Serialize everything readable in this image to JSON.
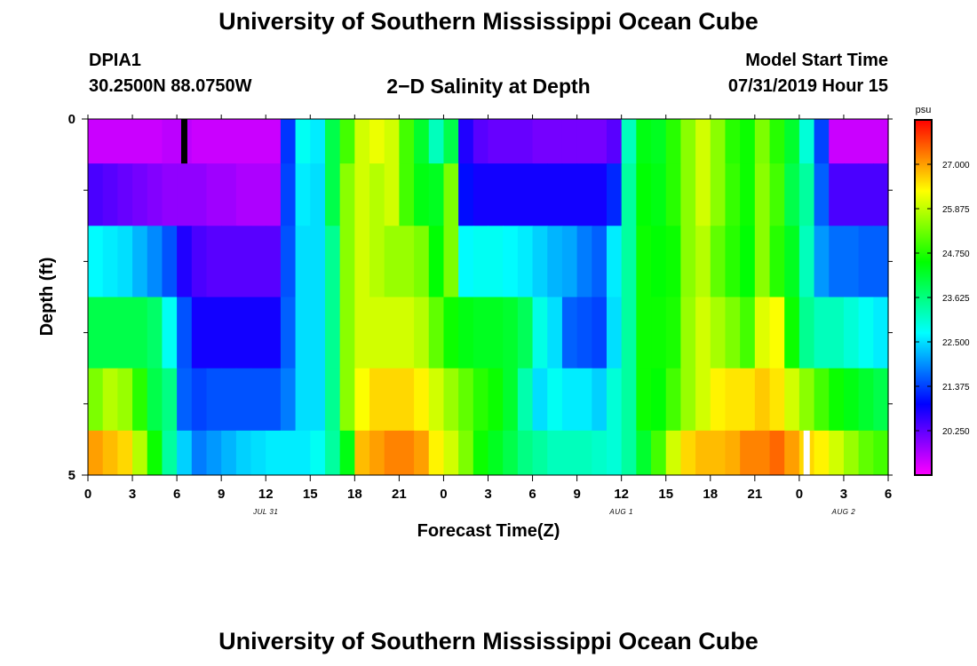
{
  "header": {
    "title_top": "University of Southern Mississippi Ocean Cube",
    "title_bottom": "University of Southern Mississippi Ocean Cube",
    "station_id": "DPIA1",
    "coordinates": "30.2500N 88.0750W",
    "subtitle": "2−D Salinity at Depth",
    "model_start_label": "Model Start Time",
    "model_start_value": "07/31/2019 Hour 15"
  },
  "chart_data": {
    "type": "heatmap",
    "title": "2−D Salinity at Depth",
    "xlabel": "Forecast Time(Z)",
    "ylabel": "Depth (ft)",
    "x_tick_labels": [
      "0",
      "3",
      "6",
      "9",
      "12",
      "15",
      "18",
      "21",
      "0",
      "3",
      "6",
      "9",
      "12",
      "15",
      "18",
      "21",
      "0",
      "3",
      "6"
    ],
    "x_range_hours": [
      0,
      54
    ],
    "date_labels": [
      {
        "text": "JUL 31",
        "hour": 12
      },
      {
        "text": "AUG 1",
        "hour": 36
      },
      {
        "text": "AUG 2",
        "hour": 51
      }
    ],
    "y_tick_labels": [
      "0",
      "5"
    ],
    "y_range_ft": [
      0,
      5
    ],
    "depth_rows_ft": [
      0.25,
      1,
      2,
      3,
      4,
      4.75
    ],
    "colorbar": {
      "unit": "psu",
      "min": 19.125,
      "max": 28.125,
      "tick_labels": [
        "27.000",
        "25.875",
        "24.750",
        "23.625",
        "22.500",
        "21.375",
        "20.250"
      ],
      "tick_values": [
        27.0,
        25.875,
        24.75,
        23.625,
        22.5,
        21.375,
        20.25
      ]
    },
    "salinity_psu": [
      [
        19.5,
        19.5,
        19.5,
        19.5,
        19.5,
        19.6,
        19.6,
        19.5,
        19.5,
        19.5,
        19.5,
        19.5,
        19.5,
        21.3,
        22.8,
        22.6,
        24.0,
        25.0,
        26.0,
        26.2,
        26.0,
        25.0,
        24.2,
        23.2,
        24.0,
        20.7,
        20.3,
        20.2,
        20.2,
        20.2,
        20.1,
        20.1,
        20.1,
        20.1,
        20.1,
        20.3,
        23.2,
        24.4,
        24.3,
        24.8,
        25.5,
        26.0,
        25.5,
        24.8,
        24.6,
        25.4,
        24.8,
        24.2,
        23.0,
        21.4,
        19.5,
        19.5,
        19.5,
        19.5
      ],
      [
        20.4,
        20.3,
        20.2,
        20.1,
        20.0,
        19.9,
        19.9,
        19.9,
        19.8,
        19.8,
        19.7,
        19.7,
        19.7,
        21.4,
        22.6,
        22.5,
        24.0,
        25.5,
        26.0,
        25.8,
        26.0,
        25.0,
        24.4,
        24.3,
        25.4,
        21.0,
        20.8,
        20.8,
        20.8,
        20.8,
        20.8,
        20.8,
        20.8,
        20.8,
        20.8,
        21.2,
        23.4,
        24.5,
        24.4,
        24.8,
        25.5,
        26.0,
        25.5,
        24.9,
        24.6,
        25.5,
        25.0,
        24.0,
        23.4,
        21.6,
        20.4,
        20.4,
        20.4,
        20.4
      ],
      [
        22.7,
        22.6,
        22.5,
        22.2,
        21.9,
        21.5,
        20.7,
        20.4,
        20.3,
        20.3,
        20.3,
        20.3,
        20.3,
        21.5,
        22.5,
        22.5,
        23.5,
        25.5,
        26.0,
        25.8,
        25.6,
        25.6,
        25.4,
        24.5,
        25.4,
        22.7,
        22.8,
        22.8,
        22.7,
        22.6,
        22.4,
        22.2,
        22.1,
        21.8,
        21.6,
        22.6,
        23.4,
        24.6,
        24.5,
        24.6,
        25.5,
        25.8,
        25.2,
        24.8,
        24.5,
        25.5,
        24.8,
        24.3,
        23.2,
        22.0,
        21.7,
        21.7,
        21.6,
        21.6
      ],
      [
        24.0,
        24.0,
        24.0,
        24.0,
        23.8,
        22.8,
        21.5,
        20.8,
        20.8,
        20.8,
        20.8,
        20.8,
        20.8,
        21.6,
        22.5,
        22.5,
        23.5,
        25.5,
        26.0,
        26.0,
        26.0,
        26.0,
        25.8,
        25.2,
        24.6,
        24.4,
        24.3,
        24.3,
        24.2,
        23.9,
        22.9,
        22.5,
        21.6,
        21.5,
        21.4,
        22.5,
        23.4,
        24.6,
        24.6,
        24.7,
        25.6,
        26.0,
        25.7,
        25.4,
        25.0,
        26.1,
        26.3,
        24.6,
        23.5,
        23.2,
        23.2,
        23.0,
        22.8,
        22.6
      ],
      [
        25.4,
        25.8,
        25.6,
        24.8,
        24.0,
        23.6,
        21.6,
        21.4,
        21.5,
        21.5,
        21.5,
        21.5,
        21.5,
        21.8,
        22.5,
        22.5,
        23.5,
        25.5,
        26.3,
        26.6,
        26.6,
        26.6,
        26.4,
        26.0,
        25.6,
        25.2,
        24.8,
        24.6,
        24.2,
        23.3,
        22.5,
        22.8,
        22.6,
        22.6,
        22.4,
        23.0,
        23.4,
        24.6,
        24.5,
        25.0,
        25.6,
        26.0,
        26.4,
        26.5,
        26.5,
        26.7,
        26.5,
        26.0,
        25.5,
        25.0,
        24.6,
        24.4,
        24.2,
        24.0
      ],
      [
        27.0,
        26.8,
        26.6,
        25.8,
        24.6,
        23.4,
        22.4,
        21.8,
        22.0,
        22.2,
        22.4,
        22.5,
        22.6,
        22.6,
        22.6,
        22.8,
        23.4,
        24.4,
        26.8,
        27.0,
        27.2,
        27.2,
        27.0,
        26.4,
        26.0,
        25.4,
        24.6,
        24.3,
        24.0,
        23.6,
        23.4,
        23.2,
        23.2,
        23.2,
        23.1,
        23.0,
        23.4,
        24.2,
        25.0,
        26.0,
        26.6,
        26.8,
        26.8,
        26.9,
        27.2,
        27.2,
        27.4,
        27.0,
        26.6,
        26.4,
        26.0,
        25.6,
        25.2,
        25.0
      ]
    ],
    "masked_cells": [
      {
        "row": 0,
        "hour": 6.5,
        "color": "#000000"
      },
      {
        "row": 5,
        "hour": 48.5,
        "color": "#ffffff"
      }
    ]
  }
}
